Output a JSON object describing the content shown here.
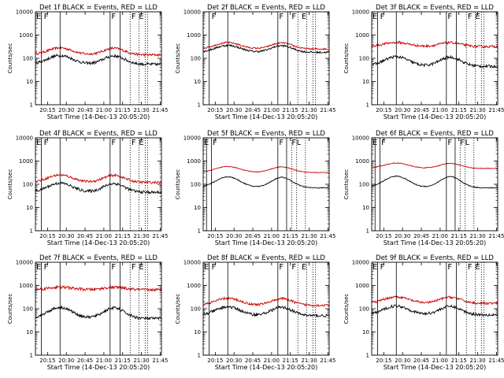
{
  "chart_data": [
    {
      "type": "line",
      "title": "Det 1f BLACK = Events, RED = LLD",
      "xlabel": "Start Time (14-Dec-13 20:05:20)",
      "ylabel": "Counts/sec",
      "yscale": "log",
      "ylim": [
        1,
        10000
      ],
      "x_ticks": [
        "20:15",
        "20:30",
        "20:45",
        "21:00",
        "21:15",
        "21:30",
        "21:45"
      ],
      "y_ticks": [
        "1",
        "10",
        "100",
        "1000",
        "10000"
      ],
      "solid_markers": [
        "20:10",
        "20:25",
        "21:05",
        "21:13"
      ],
      "dotted_markers": [
        "21:21",
        "21:28",
        "21:33",
        "21:35"
      ],
      "letters": [
        {
          "text": "E",
          "t": "20:06"
        },
        {
          "text": "F",
          "t": "20:12"
        },
        {
          "text": "F",
          "t": "21:06"
        },
        {
          "text": "F",
          "t": "21:22"
        },
        {
          "text": "E",
          "t": "21:28"
        }
      ],
      "series": [
        {
          "color": "#cc0000",
          "base": 140,
          "amp": 2.0,
          "hump1": "20:25",
          "hump2": "21:08",
          "noise": 0.05
        },
        {
          "color": "#000000",
          "base": 55,
          "amp": 2.4,
          "hump1": "20:25",
          "hump2": "21:08",
          "noise": 0.06
        }
      ]
    },
    {
      "type": "line",
      "title": "Det 2f BLACK = Events, RED = LLD",
      "xlabel": "Start Time (14-Dec-13 20:05:20)",
      "ylabel": "Counts/sec",
      "yscale": "log",
      "ylim": [
        1,
        10000
      ],
      "x_ticks": [
        "20:15",
        "20:30",
        "20:45",
        "21:00",
        "21:15",
        "21:30",
        "21:45"
      ],
      "y_ticks": [
        "1",
        "10",
        "100",
        "1000",
        "10000"
      ],
      "solid_markers": [
        "20:10",
        "20:25",
        "21:05",
        "21:13"
      ],
      "dotted_markers": [
        "21:21",
        "21:28",
        "21:33",
        "21:35"
      ],
      "letters": [
        {
          "text": "F",
          "t": "20:12"
        },
        {
          "text": "F",
          "t": "21:06"
        },
        {
          "text": "F",
          "t": "21:16"
        },
        {
          "text": "E",
          "t": "21:24"
        }
      ],
      "series": [
        {
          "color": "#cc0000",
          "base": 250,
          "amp": 1.9,
          "hump1": "20:25",
          "hump2": "21:08",
          "noise": 0.03
        },
        {
          "color": "#000000",
          "base": 180,
          "amp": 2.0,
          "hump1": "20:25",
          "hump2": "21:08",
          "noise": 0.04
        }
      ]
    },
    {
      "type": "line",
      "title": "Det 3f BLACK = Events, RED = LLD",
      "xlabel": "Start Time (14-Dec-13 20:05:20)",
      "ylabel": "Counts/sec",
      "yscale": "log",
      "ylim": [
        1,
        10000
      ],
      "x_ticks": [
        "20:15",
        "20:30",
        "20:45",
        "21:00",
        "21:15",
        "21:30",
        "21:45"
      ],
      "y_ticks": [
        "1",
        "10",
        "100",
        "1000",
        "10000"
      ],
      "solid_markers": [
        "20:10",
        "20:25",
        "21:05",
        "21:13"
      ],
      "dotted_markers": [
        "21:21",
        "21:28",
        "21:33",
        "21:35"
      ],
      "letters": [
        {
          "text": "E",
          "t": "20:06"
        },
        {
          "text": "F",
          "t": "20:12"
        },
        {
          "text": "F",
          "t": "21:06"
        },
        {
          "text": "F",
          "t": "21:22"
        },
        {
          "text": "E",
          "t": "21:28"
        }
      ],
      "series": [
        {
          "color": "#cc0000",
          "base": 320,
          "amp": 1.5,
          "hump1": "20:25",
          "hump2": "21:08",
          "noise": 0.05
        },
        {
          "color": "#000000",
          "base": 45,
          "amp": 2.6,
          "hump1": "20:25",
          "hump2": "21:08",
          "noise": 0.06
        }
      ]
    },
    {
      "type": "line",
      "title": "Det 4f BLACK = Events, RED = LLD",
      "xlabel": "Start Time (14-Dec-13 20:05:20)",
      "ylabel": "Counts/sec",
      "yscale": "log",
      "ylim": [
        1,
        10000
      ],
      "x_ticks": [
        "20:15",
        "20:30",
        "20:45",
        "21:00",
        "21:15",
        "21:30",
        "21:45"
      ],
      "y_ticks": [
        "1",
        "10",
        "100",
        "1000",
        "10000"
      ],
      "solid_markers": [
        "20:10",
        "20:25",
        "21:05",
        "21:13"
      ],
      "dotted_markers": [
        "21:21",
        "21:28",
        "21:33",
        "21:35"
      ],
      "letters": [
        {
          "text": "E",
          "t": "20:06"
        },
        {
          "text": "F",
          "t": "20:12"
        },
        {
          "text": "F",
          "t": "21:06"
        },
        {
          "text": "F",
          "t": "21:22"
        },
        {
          "text": "E",
          "t": "21:28"
        }
      ],
      "series": [
        {
          "color": "#cc0000",
          "base": 120,
          "amp": 2.1,
          "hump1": "20:25",
          "hump2": "21:08",
          "noise": 0.05
        },
        {
          "color": "#000000",
          "base": 45,
          "amp": 2.5,
          "hump1": "20:25",
          "hump2": "21:08",
          "noise": 0.06
        }
      ]
    },
    {
      "type": "line",
      "title": "Det 5f BLACK = Events, RED = LLD",
      "xlabel": "Start Time (14-Dec-13 20:05:20)",
      "ylabel": "Counts/sec",
      "yscale": "log",
      "ylim": [
        1,
        10000
      ],
      "x_ticks": [
        "20:15",
        "20:30",
        "20:45",
        "21:00",
        "21:15",
        "21:30",
        "21:45"
      ],
      "y_ticks": [
        "1",
        "10",
        "100",
        "1000",
        "10000"
      ],
      "solid_markers": [
        "20:08",
        "20:12",
        "21:05",
        "21:12"
      ],
      "dotted_markers": [
        "21:16",
        "21:20",
        "21:27"
      ],
      "letters": [
        {
          "text": "E",
          "t": "20:06"
        },
        {
          "text": "F",
          "t": "20:13"
        },
        {
          "text": "F",
          "t": "21:06"
        },
        {
          "text": "F",
          "t": "21:16"
        },
        {
          "text": "L",
          "t": "21:20"
        }
      ],
      "series": [
        {
          "color": "#cc0000",
          "base": 320,
          "amp": 1.8,
          "hump1": "20:25",
          "hump2": "21:08",
          "noise": 0.015
        },
        {
          "color": "#000000",
          "base": 70,
          "amp": 3.0,
          "hump1": "20:25",
          "hump2": "21:08",
          "noise": 0.02
        }
      ]
    },
    {
      "type": "line",
      "title": "Det 6f BLACK = Events, RED = LLD",
      "xlabel": "Start Time (14-Dec-13 20:05:20)",
      "ylabel": "Counts/sec",
      "yscale": "log",
      "ylim": [
        1,
        10000
      ],
      "x_ticks": [
        "20:15",
        "20:30",
        "20:45",
        "21:00",
        "21:15",
        "21:30",
        "21:45"
      ],
      "y_ticks": [
        "1",
        "10",
        "100",
        "1000",
        "10000"
      ],
      "solid_markers": [
        "20:08",
        "20:12",
        "21:05",
        "21:12"
      ],
      "dotted_markers": [
        "21:16",
        "21:20",
        "21:27"
      ],
      "letters": [
        {
          "text": "E",
          "t": "20:06"
        },
        {
          "text": "F",
          "t": "20:13"
        },
        {
          "text": "F",
          "t": "21:06"
        },
        {
          "text": "F",
          "t": "21:16"
        },
        {
          "text": "L",
          "t": "21:20"
        }
      ],
      "series": [
        {
          "color": "#cc0000",
          "base": 480,
          "amp": 1.7,
          "hump1": "20:25",
          "hump2": "21:08",
          "noise": 0.015
        },
        {
          "color": "#000000",
          "base": 70,
          "amp": 3.2,
          "hump1": "20:25",
          "hump2": "21:08",
          "noise": 0.02
        }
      ]
    },
    {
      "type": "line",
      "title": "Det 7f BLACK = Events, RED = LLD",
      "xlabel": "Start Time (14-Dec-13 20:05:20)",
      "ylabel": "Counts/sec",
      "yscale": "log",
      "ylim": [
        1,
        10000
      ],
      "x_ticks": [
        "20:15",
        "20:30",
        "20:45",
        "21:00",
        "21:15",
        "21:30",
        "21:45"
      ],
      "y_ticks": [
        "1",
        "10",
        "100",
        "1000",
        "10000"
      ],
      "solid_markers": [
        "20:10",
        "20:25",
        "21:05",
        "21:13"
      ],
      "dotted_markers": [
        "21:21",
        "21:28",
        "21:33",
        "21:35"
      ],
      "letters": [
        {
          "text": "E",
          "t": "20:06"
        },
        {
          "text": "F",
          "t": "20:12"
        },
        {
          "text": "F",
          "t": "21:06"
        },
        {
          "text": "F",
          "t": "21:22"
        },
        {
          "text": "E",
          "t": "21:28"
        }
      ],
      "series": [
        {
          "color": "#cc0000",
          "base": 650,
          "amp": 1.3,
          "hump1": "20:25",
          "hump2": "21:08",
          "noise": 0.06
        },
        {
          "color": "#000000",
          "base": 38,
          "amp": 3.0,
          "hump1": "20:25",
          "hump2": "21:08",
          "noise": 0.06
        }
      ]
    },
    {
      "type": "line",
      "title": "Det 8f BLACK = Events, RED = LLD",
      "xlabel": "Start Time (14-Dec-13 20:05:20)",
      "ylabel": "Counts/sec",
      "yscale": "log",
      "ylim": [
        1,
        10000
      ],
      "x_ticks": [
        "20:15",
        "20:30",
        "20:45",
        "21:00",
        "21:15",
        "21:30",
        "21:45"
      ],
      "y_ticks": [
        "1",
        "10",
        "100",
        "1000",
        "10000"
      ],
      "solid_markers": [
        "20:10",
        "20:25",
        "21:05",
        "21:13"
      ],
      "dotted_markers": [
        "21:21",
        "21:28",
        "21:33",
        "21:35"
      ],
      "letters": [
        {
          "text": "E",
          "t": "20:06"
        },
        {
          "text": "F",
          "t": "20:12"
        },
        {
          "text": "F",
          "t": "21:06"
        },
        {
          "text": "F",
          "t": "21:16"
        },
        {
          "text": "E",
          "t": "21:24"
        }
      ],
      "series": [
        {
          "color": "#cc0000",
          "base": 140,
          "amp": 2.0,
          "hump1": "20:25",
          "hump2": "21:08",
          "noise": 0.05
        },
        {
          "color": "#000000",
          "base": 50,
          "amp": 2.4,
          "hump1": "20:25",
          "hump2": "21:08",
          "noise": 0.06
        }
      ]
    },
    {
      "type": "line",
      "title": "Det 9f BLACK = Events, RED = LLD",
      "xlabel": "Start Time (14-Dec-13 20:05:20)",
      "ylabel": "Counts/sec",
      "yscale": "log",
      "ylim": [
        1,
        10000
      ],
      "x_ticks": [
        "20:15",
        "20:30",
        "20:45",
        "21:00",
        "21:15",
        "21:30",
        "21:45"
      ],
      "y_ticks": [
        "1",
        "10",
        "100",
        "1000",
        "10000"
      ],
      "solid_markers": [
        "20:10",
        "20:25",
        "21:05",
        "21:13"
      ],
      "dotted_markers": [
        "21:21",
        "21:28",
        "21:33",
        "21:35"
      ],
      "letters": [
        {
          "text": "E",
          "t": "20:06"
        },
        {
          "text": "F",
          "t": "20:12"
        },
        {
          "text": "F",
          "t": "21:06"
        },
        {
          "text": "F",
          "t": "21:22"
        },
        {
          "text": "E",
          "t": "21:28"
        }
      ],
      "series": [
        {
          "color": "#cc0000",
          "base": 170,
          "amp": 1.9,
          "hump1": "20:25",
          "hump2": "21:08",
          "noise": 0.05
        },
        {
          "color": "#000000",
          "base": 55,
          "amp": 2.4,
          "hump1": "20:25",
          "hump2": "21:08",
          "noise": 0.06
        }
      ]
    }
  ]
}
